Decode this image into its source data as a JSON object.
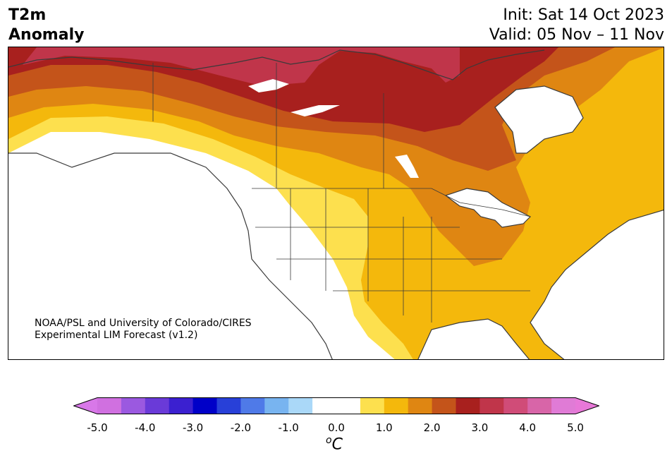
{
  "header": {
    "variable": "T2m",
    "variable_line2": "Anomaly",
    "init": "Init: Sat 14 Oct 2023",
    "valid": "Valid: 05 Nov – 11 Nov"
  },
  "credit": {
    "line1": "NOAA/PSL and University of Colorado/CIRES",
    "line2": "Experimental LIM Forecast (v1.2)"
  },
  "colorbar": {
    "unit_base": "C",
    "unit_sup": "o",
    "ticks": [
      "-5.0",
      "-4.0",
      "-3.0",
      "-2.0",
      "-1.0",
      "0.0",
      "1.0",
      "2.0",
      "3.0",
      "4.0",
      "5.0"
    ],
    "min_color": "#d878e8",
    "max_color": "#e878d8",
    "colors": [
      "#d070e0",
      "#9b59e0",
      "#6a3ad8",
      "#3b20d0",
      "#0000c8",
      "#2840d8",
      "#4f7ae8",
      "#78b4f0",
      "#aad8f8",
      "#ffffff",
      "#ffffff",
      "#fde04e",
      "#f4b80c",
      "#df8612",
      "#c4541a",
      "#a8201e",
      "#c0354a",
      "#d04c78",
      "#d865a8",
      "#e07bd6"
    ]
  },
  "colors": {
    "coast": "#3a3a3a",
    "level_0_5": "#fde04e",
    "level_1_0": "#f4b80c",
    "level_1_5": "#df8612",
    "level_2_0": "#c4541a",
    "level_2_5": "#a8201e",
    "level_3_0": "#c0354a"
  }
}
